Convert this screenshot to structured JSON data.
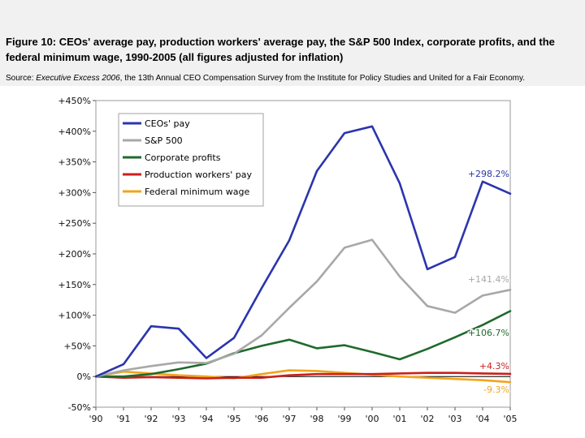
{
  "header": {
    "title": "Figure 10: CEOs' average pay, production workers' average pay, the S&P 500 Index, corporate profits, and the federal minimum wage, 1990-2005 (all figures adjusted for inflation)",
    "source_label": "Source:",
    "source_italic": "Executive Excess 2006",
    "source_rest": ", the 13th Annual CEO Compensation Survey from the Institute for Policy Studies and United for a Fair Economy."
  },
  "chart_data": {
    "type": "line",
    "title": "",
    "xlabel": "",
    "ylabel": "",
    "x": [
      "'90",
      "'91",
      "'92",
      "'93",
      "'94",
      "'95",
      "'96",
      "'97",
      "'98",
      "'99",
      "'00",
      "'01",
      "'02",
      "'03",
      "'04",
      "'05"
    ],
    "ylim": [
      -50,
      450
    ],
    "yticks": [
      -50,
      0,
      50,
      100,
      150,
      200,
      250,
      300,
      350,
      400,
      450
    ],
    "ytick_labels": [
      "-50%",
      "0%",
      "+50%",
      "+100%",
      "+150%",
      "+200%",
      "+250%",
      "+300%",
      "+350%",
      "+400%",
      "+450%"
    ],
    "grid": false,
    "legend_position": "top-left",
    "series": [
      {
        "name": "CEOs' pay",
        "color": "#2b35ad",
        "values": [
          0,
          20,
          82,
          78,
          30,
          63,
          144,
          222,
          335,
          397,
          408,
          315,
          175,
          195,
          318,
          298.2
        ],
        "end_label": "+298.2%"
      },
      {
        "name": "S&P 500",
        "color": "#a8a8a8",
        "values": [
          0,
          10,
          17,
          23,
          22,
          37,
          67,
          112,
          155,
          210,
          223,
          163,
          115,
          104,
          132,
          141.4
        ],
        "end_label": "+141.4%"
      },
      {
        "name": "Corporate profits",
        "color": "#1f6a2c",
        "values": [
          0,
          0,
          4,
          12,
          21,
          38,
          50,
          60,
          46,
          51,
          40,
          28,
          45,
          64,
          84,
          106.7
        ],
        "end_label": "+106.7%"
      },
      {
        "name": "Production workers' pay",
        "color": "#cc1f1a",
        "values": [
          0,
          -2,
          -1,
          -2,
          -3,
          -2,
          -2,
          2,
          4,
          4,
          4,
          5,
          6,
          6,
          5,
          4.3
        ],
        "end_label": "+4.3%"
      },
      {
        "name": "Federal minimum wage",
        "color": "#f0a51c",
        "values": [
          0,
          8,
          5,
          2,
          0,
          -3,
          4,
          10,
          9,
          6,
          3,
          0,
          -2,
          -4,
          -6,
          -9.3
        ],
        "end_label": "-9.3%"
      }
    ]
  }
}
